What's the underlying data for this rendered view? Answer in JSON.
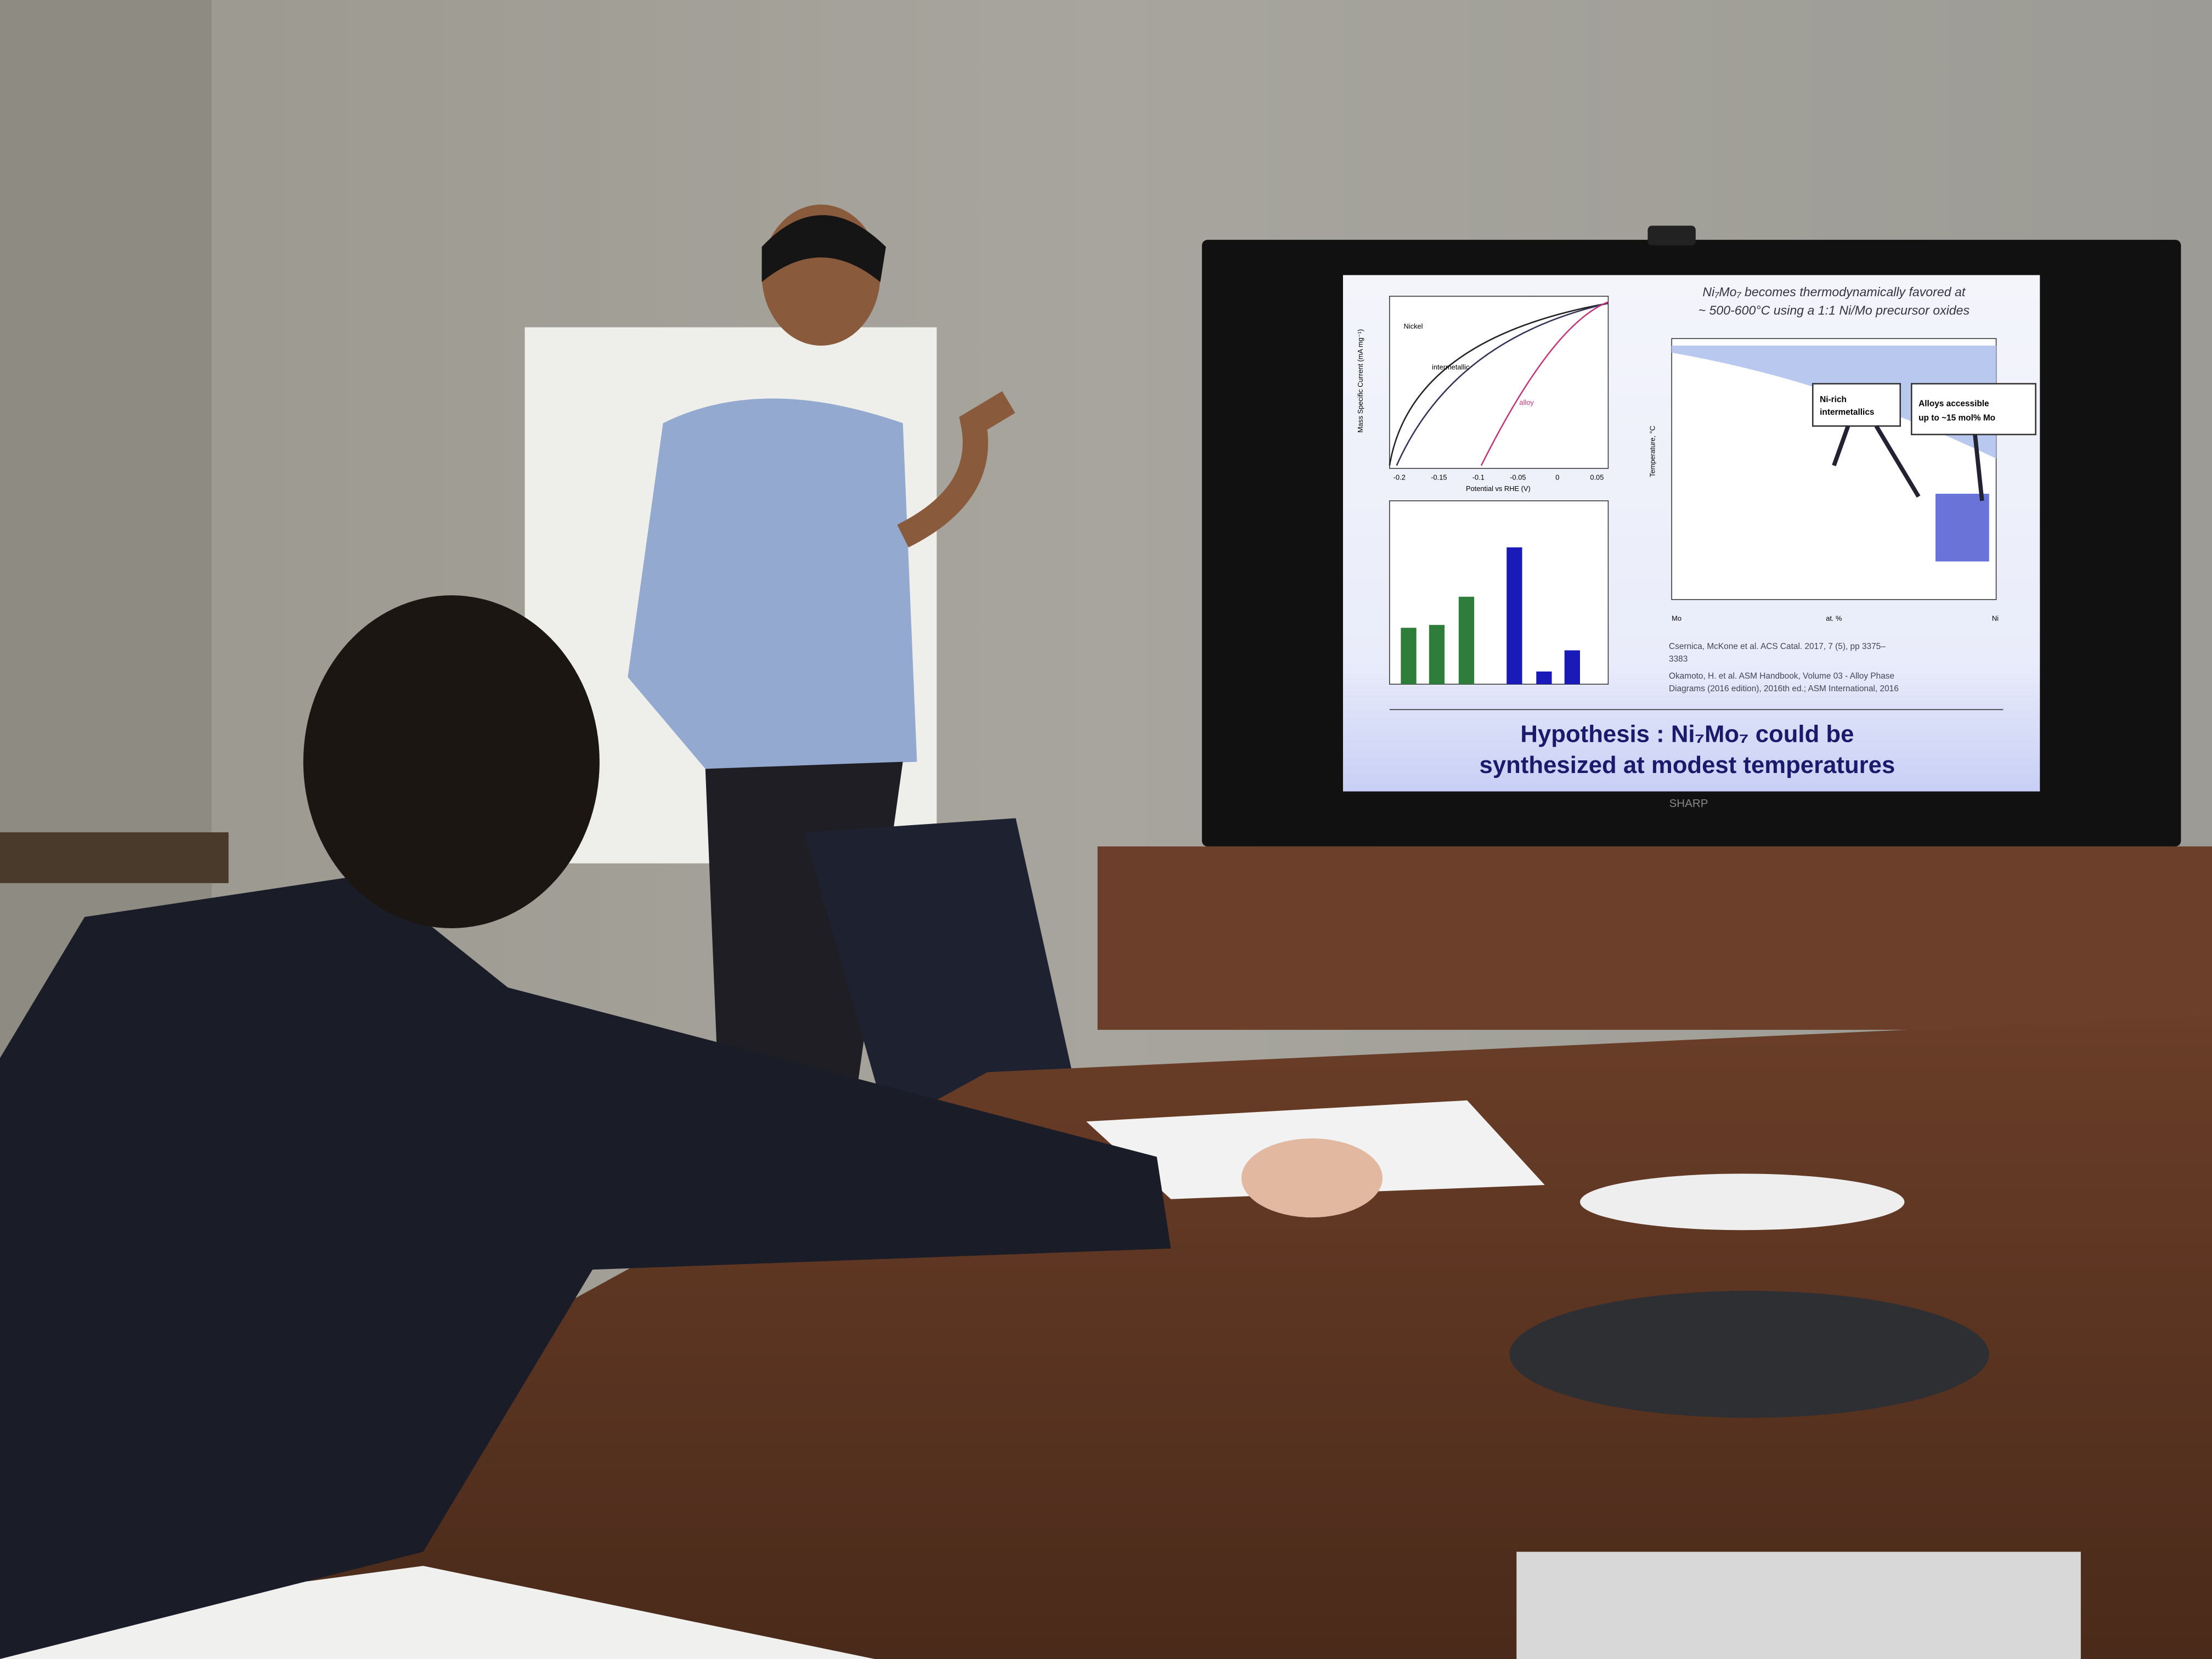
{
  "slide": {
    "title": [
      "Ni₇Mo₇ becomes thermodynamically favored at",
      "~ 500-600°C using a 1:1 Ni/Mo precursor oxides"
    ],
    "plot_top": {
      "x_label": "Potential vs RHE (V)",
      "y_label": "Mass Specific Current (mA mg⁻¹)",
      "x_ticks": [
        -0.2,
        -0.15,
        -0.1,
        -0.05,
        0,
        0.05
      ],
      "labels": [
        "Nickel",
        "intermetallic",
        "alloy"
      ]
    },
    "phase_diagram": {
      "y_label": "Temperature, °C",
      "x_label": "at. %",
      "x_ends": [
        "Mo",
        "Ni"
      ],
      "callouts": [
        [
          "Ni-rich",
          "intermetallics"
        ],
        [
          "Alloys accessible",
          "up to ~15 mol% Mo"
        ]
      ]
    },
    "references": [
      [
        "Csernica, McKone et al. ACS Catal. 2017, 7 (5), pp 3375–",
        "3383"
      ],
      [
        "Okamoto, H. et al. ASM Handbook, Volume 03 - Alloy Phase",
        "Diagrams (2016 edition), 2016th ed.; ASM International, 2016"
      ]
    ],
    "hypothesis": [
      "Hypothesis : Ni₇Mo₇ could be",
      "synthesized at modest temperatures"
    ]
  },
  "tv_brand": "SHARP"
}
